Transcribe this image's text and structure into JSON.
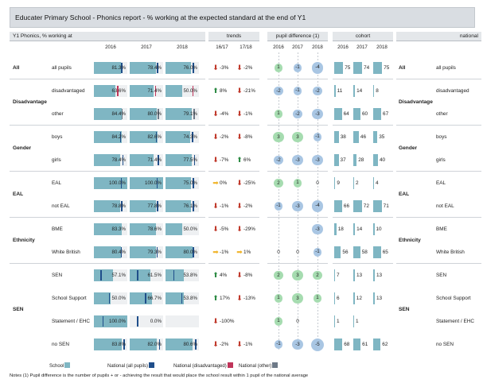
{
  "title": "Educater Primary School - Phonics report - % working at the expected standard at the end of Y1",
  "headers": {
    "main": "Y1 Phonics, % working at",
    "trends": "trends",
    "pupil_difference": "pupil difference (1)",
    "cohort": "cohort",
    "national": "national"
  },
  "years": [
    "2016",
    "2017",
    "2018"
  ],
  "trend_cols": [
    "16/17",
    "17/18"
  ],
  "colors": {
    "bar": "#7fb6c3",
    "marker_all": "#1f4e8a",
    "marker_disadvantaged": "#c0355a",
    "marker_other": "#6e7a88",
    "up": "#2e8b45",
    "down": "#c0392b",
    "flat": "#f0b429",
    "circle_pos": "#a6dcb0",
    "circle_neg": "#a9c6e3"
  },
  "groups": [
    {
      "name": "All",
      "national_name": "All"
    },
    {
      "name": "Disadvantage",
      "national_name": "Disadvantage"
    },
    {
      "name": "Gender",
      "national_name": "Gender"
    },
    {
      "name": "EAL",
      "national_name": "EAL"
    },
    {
      "name": "Ethnicity",
      "national_name": "Ethnicity"
    },
    {
      "name": "SEN",
      "national_name": "SEN"
    }
  ],
  "rows": [
    {
      "label": "all pupils",
      "values": [
        81.3,
        78.4,
        76.0
      ],
      "value_labels": [
        "81.3%",
        "78.4%",
        "76.0%"
      ],
      "marker": "all",
      "marker_values": [
        81.5,
        81.1,
        82.1
      ],
      "trends": [
        {
          "dir": "down",
          "text": "-3%"
        },
        {
          "dir": "down",
          "text": "-2%"
        }
      ],
      "diff": [
        "1",
        "-1",
        "-4"
      ],
      "cohort": [
        75,
        74,
        75
      ],
      "cohort_labels": [
        "75",
        "74",
        "75"
      ],
      "national_label": "all pupils"
    },
    {
      "label": "disadvantaged",
      "values": [
        63.6,
        71.4,
        50.0
      ],
      "value_labels": [
        "63.6%",
        "71.4%",
        "50.0%"
      ],
      "marker": "dis",
      "marker_values": [
        70.0,
        75.0,
        80.0
      ],
      "trends": [
        {
          "dir": "up",
          "text": "8%"
        },
        {
          "dir": "down",
          "text": "-21%"
        }
      ],
      "diff": [
        "-2",
        "-1",
        "-2"
      ],
      "cohort": [
        11,
        14,
        8
      ],
      "cohort_labels": [
        "11",
        "14",
        "8"
      ],
      "national_label": "disadvantaged"
    },
    {
      "label": "other",
      "values": [
        84.4,
        80.0,
        79.1
      ],
      "value_labels": [
        "84.4%",
        "80.0%",
        "79.1%"
      ],
      "marker": "oth",
      "marker_values": [
        83.0,
        84.5,
        84.0
      ],
      "trends": [
        {
          "dir": "down",
          "text": "-4%"
        },
        {
          "dir": "down",
          "text": "-1%"
        }
      ],
      "diff": [
        "1",
        "-2",
        "-3"
      ],
      "cohort": [
        64,
        60,
        67
      ],
      "cohort_labels": [
        "64",
        "60",
        "67"
      ],
      "national_label": "other"
    },
    {
      "label": "boys",
      "values": [
        84.2,
        82.6,
        74.3
      ],
      "value_labels": [
        "84.2%",
        "82.6%",
        "74.3%"
      ],
      "marker": "all",
      "marker_values": [
        77.5,
        78.0,
        79.0
      ],
      "trends": [
        {
          "dir": "down",
          "text": "-2%"
        },
        {
          "dir": "down",
          "text": "-8%"
        }
      ],
      "diff": [
        "3",
        "3",
        "-1"
      ],
      "cohort": [
        38,
        46,
        35
      ],
      "cohort_labels": [
        "38",
        "46",
        "35"
      ],
      "national_label": "boys"
    },
    {
      "label": "girls",
      "values": [
        78.4,
        71.4,
        77.5
      ],
      "value_labels": [
        "78.4%",
        "71.4%",
        "77.5%"
      ],
      "marker": "all",
      "marker_values": [
        85.0,
        84.5,
        85.5
      ],
      "trends": [
        {
          "dir": "down",
          "text": "-7%"
        },
        {
          "dir": "up",
          "text": "6%"
        }
      ],
      "diff": [
        "-2",
        "-3",
        "-3"
      ],
      "cohort": [
        37,
        28,
        40
      ],
      "cohort_labels": [
        "37",
        "28",
        "40"
      ],
      "national_label": "girls"
    },
    {
      "label": "EAL",
      "values": [
        100.0,
        100.0,
        75.0
      ],
      "value_labels": [
        "100.0%",
        "100.0%",
        "75.0%"
      ],
      "marker": "all",
      "marker_values": [
        80.0,
        80.5,
        81.5
      ],
      "trends": [
        {
          "dir": "flat",
          "text": "0%"
        },
        {
          "dir": "down",
          "text": "-25%"
        }
      ],
      "diff": [
        "2",
        "1",
        "0"
      ],
      "cohort": [
        9,
        2,
        4
      ],
      "cohort_labels": [
        "9",
        "2",
        "4"
      ],
      "national_label": "EAL"
    },
    {
      "label": "not EAL",
      "values": [
        78.8,
        77.8,
        76.1
      ],
      "value_labels": [
        "78.8%",
        "77.8%",
        "76.1%"
      ],
      "marker": "all",
      "marker_values": [
        81.5,
        81.0,
        82.0
      ],
      "trends": [
        {
          "dir": "down",
          "text": "-1%"
        },
        {
          "dir": "down",
          "text": "-2%"
        }
      ],
      "diff": [
        "-1",
        "-3",
        "-4"
      ],
      "cohort": [
        66,
        72,
        71
      ],
      "cohort_labels": [
        "66",
        "72",
        "71"
      ],
      "national_label": "not EAL"
    },
    {
      "label": "BME",
      "values": [
        83.3,
        78.6,
        50.0
      ],
      "value_labels": [
        "83.3%",
        "78.6%",
        "50.0%"
      ],
      "marker": "all",
      "marker_values": null,
      "trends": [
        {
          "dir": "down",
          "text": "-5%"
        },
        {
          "dir": "down",
          "text": "-29%"
        }
      ],
      "diff": [
        "",
        "",
        "-3"
      ],
      "cohort": [
        18,
        14,
        10
      ],
      "cohort_labels": [
        "18",
        "14",
        "10"
      ],
      "national_label": "BME"
    },
    {
      "label": "White British",
      "values": [
        80.4,
        79.3,
        80.0
      ],
      "value_labels": [
        "80.4%",
        "79.3%",
        "80.0%"
      ],
      "marker": "all",
      "marker_values": [
        80.0,
        80.5,
        81.5
      ],
      "trends": [
        {
          "dir": "flat",
          "text": "-1%"
        },
        {
          "dir": "flat",
          "text": "1%"
        }
      ],
      "diff": [
        "0",
        "0",
        "-1"
      ],
      "cohort": [
        56,
        58,
        65
      ],
      "cohort_labels": [
        "56",
        "58",
        "65"
      ],
      "national_label": "White British"
    },
    {
      "label": "SEN",
      "values": [
        57.1,
        61.5,
        53.8
      ],
      "value_labels": [
        "57.1%",
        "61.5%",
        "53.8%"
      ],
      "marker": "all",
      "marker_values": [
        20.0,
        22.0,
        23.0
      ],
      "trends": [
        {
          "dir": "up",
          "text": "4%"
        },
        {
          "dir": "down",
          "text": "-8%"
        }
      ],
      "diff": [
        "2",
        "3",
        "2"
      ],
      "cohort": [
        7,
        13,
        13
      ],
      "cohort_labels": [
        "7",
        "13",
        "13"
      ],
      "national_label": "SEN"
    },
    {
      "label": "School Support",
      "values": [
        50.0,
        66.7,
        53.8
      ],
      "value_labels": [
        "50.0%",
        "66.7%",
        "53.8%"
      ],
      "marker": "all",
      "marker_values": [
        45.0,
        46.0,
        47.0
      ],
      "trends": [
        {
          "dir": "up",
          "text": "17%"
        },
        {
          "dir": "down",
          "text": "-13%"
        }
      ],
      "diff": [
        "1",
        "3",
        "1"
      ],
      "cohort": [
        6,
        12,
        13
      ],
      "cohort_labels": [
        "6",
        "12",
        "13"
      ],
      "national_label": "School Support"
    },
    {
      "label": "Statement / EHC",
      "values": [
        100.0,
        0.0,
        null
      ],
      "value_labels": [
        "100.0%",
        "0.0%",
        ""
      ],
      "marker": "all",
      "marker_values": [
        25.0,
        22.0,
        null
      ],
      "trends": [
        {
          "dir": "down",
          "text": "-100%"
        },
        {
          "dir": "none",
          "text": ""
        }
      ],
      "diff": [
        "1",
        "0",
        ""
      ],
      "cohort": [
        1,
        1,
        null
      ],
      "cohort_labels": [
        "1",
        "1",
        ""
      ],
      "national_label": "Statement / EHC"
    },
    {
      "label": "no SEN",
      "values": [
        83.8,
        82.0,
        80.6
      ],
      "value_labels": [
        "83.8%",
        "82.0%",
        "80.6%"
      ],
      "marker": "all",
      "marker_values": [
        88.5,
        88.0,
        89.0
      ],
      "trends": [
        {
          "dir": "down",
          "text": "-2%"
        },
        {
          "dir": "down",
          "text": "-1%"
        }
      ],
      "diff": [
        "-1",
        "-3",
        "-5"
      ],
      "cohort": [
        68,
        61,
        62
      ],
      "cohort_labels": [
        "68",
        "61",
        "62"
      ],
      "national_label": "no SEN"
    }
  ],
  "legend": [
    {
      "label": "School",
      "color": "#7fb6c3"
    },
    {
      "label": "National (all pupils)",
      "color": "#1f4e8a"
    },
    {
      "label": "National (disadvantaged)",
      "color": "#c0355a"
    },
    {
      "label": "National (other)",
      "color": "#6e7a88"
    }
  ],
  "note": "Notes (1) Pupil difference is the number of pupils + or - achieving the result that would place the school result within 1 pupil of the national average"
}
